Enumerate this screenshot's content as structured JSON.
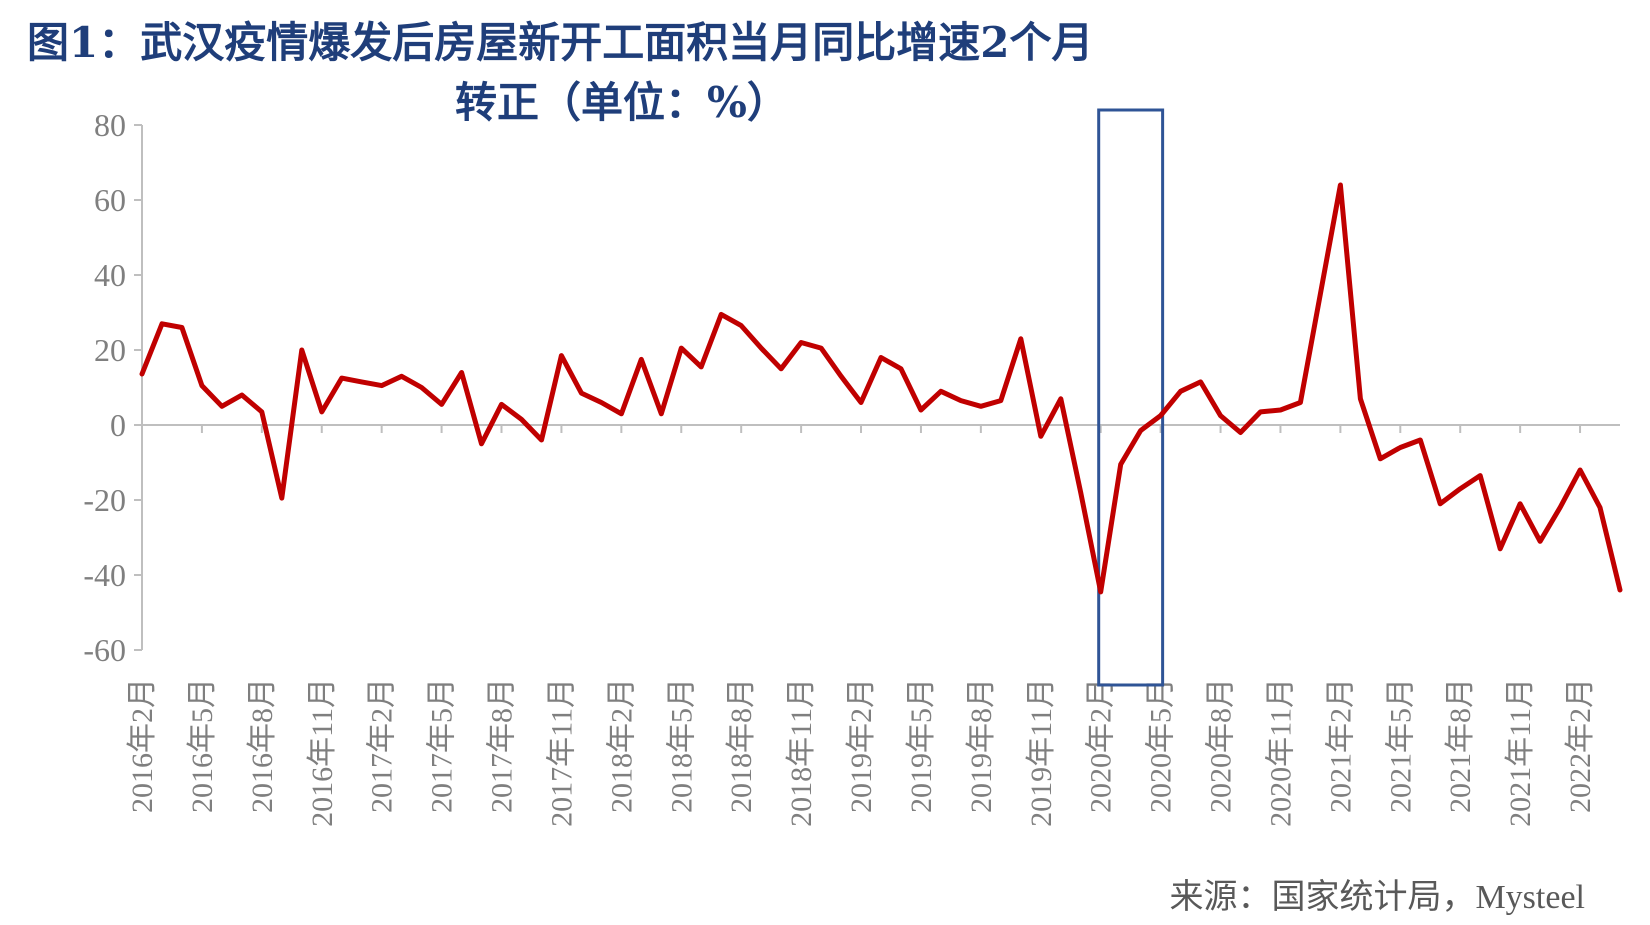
{
  "chart_data": {
    "type": "line",
    "title_line1": "图1：武汉疫情爆发后房屋新开工面积当月同比增速2个月",
    "title_line2": "转正（单位：%）",
    "source": "来源：国家统计局，Mysteel",
    "ylim": [
      -60,
      80
    ],
    "yticks": [
      80,
      60,
      40,
      20,
      0,
      -20,
      -40,
      -60
    ],
    "grid": false,
    "x": [
      "2016年2月",
      "2016年3月",
      "2016年4月",
      "2016年5月",
      "2016年6月",
      "2016年7月",
      "2016年8月",
      "2016年9月",
      "2016年10月",
      "2016年11月",
      "2016年12月",
      "2017年1月",
      "2017年2月",
      "2017年3月",
      "2017年4月",
      "2017年5月",
      "2017年6月",
      "2017年7月",
      "2017年8月",
      "2017年9月",
      "2017年10月",
      "2017年11月",
      "2017年12月",
      "2018年1月",
      "2018年2月",
      "2018年3月",
      "2018年4月",
      "2018年5月",
      "2018年6月",
      "2018年7月",
      "2018年8月",
      "2018年9月",
      "2018年10月",
      "2018年11月",
      "2018年12月",
      "2019年1月",
      "2019年2月",
      "2019年3月",
      "2019年4月",
      "2019年5月",
      "2019年6月",
      "2019年7月",
      "2019年8月",
      "2019年9月",
      "2019年10月",
      "2019年11月",
      "2019年12月",
      "2020年1月",
      "2020年2月",
      "2020年3月",
      "2020年4月",
      "2020年5月",
      "2020年6月",
      "2020年7月",
      "2020年8月",
      "2020年9月",
      "2020年10月",
      "2020年11月",
      "2020年12月",
      "2021年1月",
      "2021年2月",
      "2021年3月",
      "2021年4月",
      "2021年5月",
      "2021年6月",
      "2021年7月",
      "2021年8月",
      "2021年9月",
      "2021年10月",
      "2021年11月",
      "2021年12月",
      "2022年1月",
      "2022年2月",
      "2022年3月",
      "2022年4月"
    ],
    "xtick_labels": [
      "2016年2月",
      "2016年5月",
      "2016年8月",
      "2016年11月",
      "2017年2月",
      "2017年5月",
      "2017年8月",
      "2017年11月",
      "2018年2月",
      "2018年5月",
      "2018年8月",
      "2018年11月",
      "2019年2月",
      "2019年5月",
      "2019年8月",
      "2019年11月",
      "2020年2月",
      "2020年5月",
      "2020年8月",
      "2020年11月",
      "2021年2月",
      "2021年5月",
      "2021年8月",
      "2021年11月",
      "2022年2月"
    ],
    "series": [
      {
        "color": "#C00000",
        "values": [
          13.6,
          27,
          26,
          10.5,
          5,
          8,
          3.5,
          -19.5,
          20,
          3.5,
          12.5,
          11.5,
          10.5,
          13,
          10,
          5.5,
          14,
          -5,
          5.5,
          1.5,
          -4,
          18.5,
          8.5,
          6,
          3,
          17.5,
          3,
          20.5,
          15.5,
          29.5,
          26.5,
          20.5,
          15,
          22,
          20.5,
          13,
          6,
          18,
          15,
          4,
          9,
          6.5,
          5,
          6.5,
          23,
          -3,
          7,
          -18,
          -44.5,
          -10.5,
          -1.5,
          2.5,
          9,
          11.5,
          2.5,
          -2,
          3.5,
          4,
          6,
          35,
          64,
          7,
          -9,
          -6,
          -4,
          -21,
          -17,
          -13.5,
          -33,
          -21,
          -31,
          -22,
          -12,
          -22,
          -44
        ]
      }
    ],
    "highlight_box": {
      "from": "2020年2月",
      "to": "2020年5月",
      "color": "#2F5496"
    }
  }
}
